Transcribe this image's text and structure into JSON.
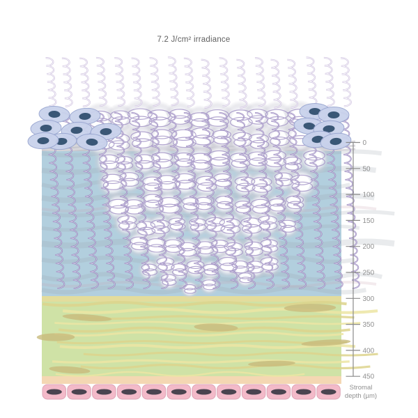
{
  "figure": {
    "title": "7.2 J/cm² irradiance"
  },
  "axis": {
    "ticks": [
      "0",
      "50",
      "100",
      "150",
      "200",
      "250",
      "300",
      "350",
      "400",
      "450"
    ],
    "caption_line1": "Stromal",
    "caption_line2": "depth (µm)"
  },
  "colors": {
    "background": "#ffffff",
    "title_text": "#5f5f5f",
    "axis_line": "#8a8a8a",
    "axis_text": "#8f8f8f",
    "uv_wave_top": "#c9badb",
    "uv_wave_tissue": "#8a78b4",
    "uv_wave_core": "#ffffff",
    "uv_wave_tissue_core": "#e6def2",
    "coil_loop": "#a090c4",
    "ball_core": "#ffffff",
    "ball_halo": "#cfcfd8",
    "stroma": "#b2cfde",
    "lamella": "#9aa4ae",
    "lamella_pink": "#c8a4b0",
    "bowman": "#c6c5cb",
    "bowman_streak": "#d8d7dc",
    "green_layer": "#cfe2a6",
    "green_band": "#e4dc9b",
    "green_streak_light": "#ece5a3",
    "green_streak_dark": "#ddd48c",
    "tan_blob": "#c8ba7c",
    "descemet": "#f4d7b3",
    "endo_fill": "#f3bac9",
    "endo_stroke": "#dda4b6",
    "endo_nucleus": "#4a4450",
    "epi_fill": "#c9d2ec",
    "epi_stroke": "#99a6d0",
    "epi_nucleus": "#315070"
  }
}
